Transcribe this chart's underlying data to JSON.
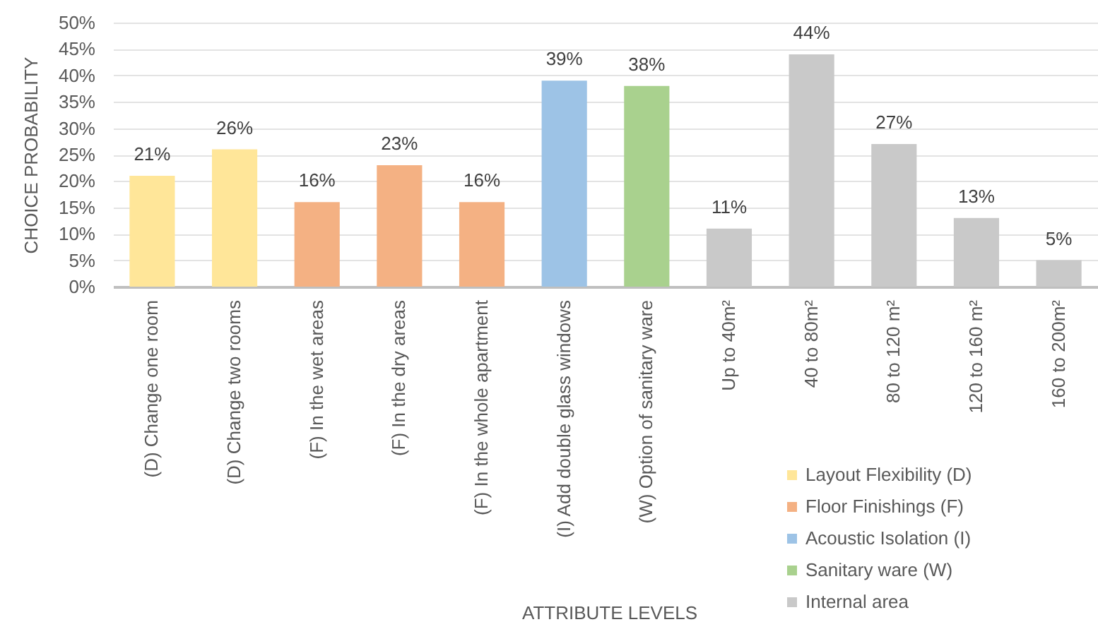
{
  "chart_data": {
    "type": "bar",
    "xlabel": "ATTRIBUTE LEVELS",
    "ylabel": "CHOICE PROBABILITY",
    "categories": [
      "(D) Change one room",
      "(D) Change two rooms",
      "(F) In the wet areas",
      "(F) In the dry areas",
      "(F) In the whole apartment",
      "(I) Add double glass windows",
      "(W) Option of sanitary ware",
      "Up to 40m²",
      "40 to 80m²",
      "80 to 120 m²",
      "120 to 160 m²",
      "160 to 200m²"
    ],
    "series": [
      {
        "name": "Layout Flexibility (D)",
        "color": "#ffe699",
        "values": [
          21,
          26,
          null,
          null,
          null,
          null,
          null,
          null,
          null,
          null,
          null,
          null
        ],
        "value_labels": [
          "21%",
          "26%",
          null,
          null,
          null,
          null,
          null,
          null,
          null,
          null,
          null,
          null
        ]
      },
      {
        "name": "Floor Finishings (F)",
        "color": "#f4b183",
        "values": [
          null,
          null,
          16,
          23,
          16,
          null,
          null,
          null,
          null,
          null,
          null,
          null
        ],
        "value_labels": [
          null,
          null,
          "16%",
          "23%",
          "16%",
          null,
          null,
          null,
          null,
          null,
          null,
          null
        ]
      },
      {
        "name": "Acoustic Isolation (I)",
        "color": "#9dc3e6",
        "values": [
          null,
          null,
          null,
          null,
          null,
          39,
          null,
          null,
          null,
          null,
          null,
          null
        ],
        "value_labels": [
          null,
          null,
          null,
          null,
          null,
          "39%",
          null,
          null,
          null,
          null,
          null,
          null
        ]
      },
      {
        "name": "Sanitary ware (W)",
        "color": "#a9d18e",
        "values": [
          null,
          null,
          null,
          null,
          null,
          null,
          38,
          null,
          null,
          null,
          null,
          null
        ],
        "value_labels": [
          null,
          null,
          null,
          null,
          null,
          null,
          "38%",
          null,
          null,
          null,
          null,
          null
        ]
      },
      {
        "name": "Internal area",
        "color": "#c9c9c9",
        "values": [
          null,
          null,
          null,
          null,
          null,
          null,
          null,
          11,
          44,
          27,
          13,
          5
        ],
        "value_labels": [
          null,
          null,
          null,
          null,
          null,
          null,
          null,
          "11%",
          "44%",
          "27%",
          "13%",
          "5%"
        ]
      }
    ],
    "ylim": [
      0,
      50
    ],
    "yticks": [
      {
        "value": 0,
        "label": "0%"
      },
      {
        "value": 5,
        "label": "5%"
      },
      {
        "value": 10,
        "label": "10%"
      },
      {
        "value": 15,
        "label": "15%"
      },
      {
        "value": 20,
        "label": "20%"
      },
      {
        "value": 25,
        "label": "25%"
      },
      {
        "value": 30,
        "label": "30%"
      },
      {
        "value": 35,
        "label": "35%"
      },
      {
        "value": 40,
        "label": "40%"
      },
      {
        "value": 45,
        "label": "45%"
      },
      {
        "value": 50,
        "label": "50%"
      }
    ],
    "grid": "y",
    "legend": "bottom right"
  }
}
